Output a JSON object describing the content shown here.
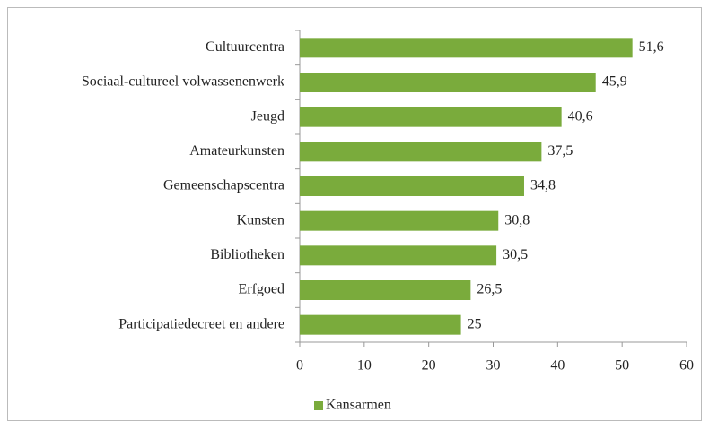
{
  "chart_data": {
    "type": "bar",
    "orientation": "horizontal",
    "categories": [
      "Cultuurcentra",
      "Sociaal-cultureel volwassenenwerk",
      "Jeugd",
      "Amateurkunsten",
      "Gemeenschapscentra",
      "Kunsten",
      "Bibliotheken",
      "Erfgoed",
      "Participatiedecreet en andere"
    ],
    "series": [
      {
        "name": "Kansarmen",
        "color": "#7aab3c",
        "values": [
          51.6,
          45.9,
          40.6,
          37.5,
          34.8,
          30.8,
          30.5,
          26.5,
          25
        ],
        "value_labels": [
          "51,6",
          "45,9",
          "40,6",
          "37,5",
          "34,8",
          "30,8",
          "30,5",
          "26,5",
          "25"
        ]
      }
    ],
    "xlim": [
      0,
      60
    ],
    "xticks": [
      0,
      10,
      20,
      30,
      40,
      50,
      60
    ],
    "legend": "bottom"
  }
}
